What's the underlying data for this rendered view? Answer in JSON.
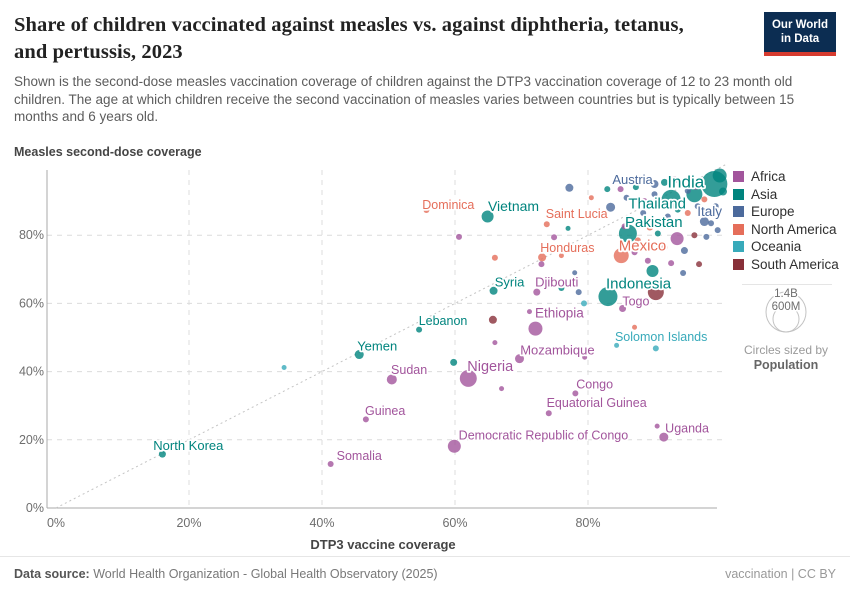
{
  "header": {
    "title": "Share of children vaccinated against measles vs. against diphtheria, tetanus, and pertussis, 2023",
    "subtitle": "Shown is the second-dose measles vaccination coverage of children against the DTP3 vaccination coverage of 12 to 23 month old children. The age at which children receive the second vaccination of measles varies between countries but is typically between 15 months and 6 years old.",
    "logo_line1": "Our World",
    "logo_line2": "in Data"
  },
  "legend": {
    "items": [
      "Africa",
      "Asia",
      "Europe",
      "North America",
      "Oceania",
      "South America"
    ],
    "size": {
      "big_label": "1.4B",
      "small_label": "600M",
      "caption": "Circles sized by",
      "caption_bold": "Population"
    }
  },
  "footer": {
    "source_label": "Data source:",
    "source_text": "World Health Organization - Global Health Observatory (2025)",
    "right_text": "vaccination | CC BY"
  },
  "chart_data": {
    "type": "scatter",
    "title": "Share of children vaccinated against measles vs. against diphtheria, tetanus, and pertussis, 2023",
    "xlabel": "DTP3 vaccine coverage",
    "ylabel": "Measles second-dose coverage",
    "xlim": [
      0,
      100
    ],
    "ylim": [
      0,
      100
    ],
    "x_ticks": [
      0,
      20,
      40,
      60,
      80
    ],
    "y_ticks": [
      0,
      20,
      40,
      60,
      80
    ],
    "grid": true,
    "diagonal_reference_line": true,
    "legend_position": "right",
    "size_encoding": "Population",
    "continent_colors": {
      "Africa": "#a2559c",
      "Asia": "#00847e",
      "Europe": "#4c6a9c",
      "North America": "#e56e5a",
      "Oceania": "#38aaba",
      "South America": "#883039"
    },
    "points": [
      {
        "name": "North Korea",
        "x": 16,
        "y": 15.8,
        "r": 3.5,
        "c": "Asia",
        "label": {
          "x": 19.9,
          "y": 18.3,
          "s": 13
        }
      },
      {
        "name": "Somalia",
        "x": 41.3,
        "y": 12.9,
        "r": 3,
        "c": "Africa",
        "label": {
          "x": 45.6,
          "y": 15.4,
          "s": 12.5
        }
      },
      {
        "name": "Guinea",
        "x": 46.6,
        "y": 26,
        "r": 3,
        "c": "Africa",
        "label": {
          "x": 49.5,
          "y": 28.5,
          "s": 12.5
        }
      },
      {
        "name": "Yemen",
        "x": 45.6,
        "y": 45,
        "r": 4.5,
        "c": "Asia",
        "label": {
          "x": 48.3,
          "y": 47.5,
          "s": 13
        }
      },
      {
        "name": "Sudan",
        "x": 50.5,
        "y": 37.7,
        "r": 5,
        "c": "Africa",
        "label": {
          "x": 53.1,
          "y": 40.6,
          "s": 12.5
        }
      },
      {
        "name": "Lebanon",
        "x": 54.6,
        "y": 52.3,
        "r": 3,
        "c": "Asia",
        "label": {
          "x": 58.2,
          "y": 55,
          "s": 12.5
        }
      },
      {
        "name": "Nigeria",
        "x": 62,
        "y": 38,
        "r": 8.5,
        "c": "Africa",
        "label": {
          "x": 65.3,
          "y": 41.6,
          "s": 14.5
        }
      },
      {
        "name": "Democratic Republic of Congo",
        "x": 59.9,
        "y": 18.1,
        "r": 6.5,
        "c": "Africa",
        "label": {
          "x": 73.3,
          "y": 21.3,
          "s": 12.5
        }
      },
      {
        "name": "Dominica",
        "x": 55.7,
        "y": 87.4,
        "r": 3,
        "c": "North America",
        "label": {
          "x": 59,
          "y": 88.9,
          "s": 12.5
        }
      },
      {
        "name": "Vietnam",
        "x": 64.9,
        "y": 85.5,
        "r": 6,
        "c": "Asia",
        "label": {
          "x": 68.8,
          "y": 88.5,
          "s": 14
        }
      },
      {
        "name": "Saint Lucia",
        "x": 73.8,
        "y": 83.2,
        "r": 3,
        "c": "North America",
        "label": {
          "x": 78.3,
          "y": 86.4,
          "s": 12.5
        }
      },
      {
        "name": "Honduras",
        "x": 73.1,
        "y": 73.5,
        "r": 4,
        "c": "North America",
        "label": {
          "x": 76.9,
          "y": 76.3,
          "s": 12.5
        }
      },
      {
        "name": "Syria",
        "x": 65.8,
        "y": 63.7,
        "r": 4,
        "c": "Asia",
        "label": {
          "x": 68.2,
          "y": 66.3,
          "s": 13
        }
      },
      {
        "name": "Djibouti",
        "x": 72.3,
        "y": 63.3,
        "r": 3.5,
        "c": "Africa",
        "label": {
          "x": 75.3,
          "y": 66.3,
          "s": 13
        }
      },
      {
        "name": "Indonesia",
        "x": 83,
        "y": 62,
        "r": 9.5,
        "c": "Asia",
        "label": {
          "x": 87.6,
          "y": 65.9,
          "s": 15
        }
      },
      {
        "name": "Togo",
        "x": 85.2,
        "y": 58.5,
        "r": 3.5,
        "c": "Africa",
        "label": {
          "x": 87.2,
          "y": 60.7,
          "s": 12.5
        }
      },
      {
        "name": "Ethiopia",
        "x": 72.1,
        "y": 52.6,
        "r": 7,
        "c": "Africa",
        "label": {
          "x": 75.7,
          "y": 57.2,
          "s": 13.5
        }
      },
      {
        "name": "Mozambique",
        "x": 69.7,
        "y": 43.8,
        "r": 4.5,
        "c": "Africa",
        "label": {
          "x": 75.4,
          "y": 46.4,
          "s": 13
        }
      },
      {
        "name": "Solomon Islands",
        "x": 90.2,
        "y": 46.8,
        "r": 3,
        "c": "Oceania",
        "label": {
          "x": 91,
          "y": 50.2,
          "s": 12.5
        }
      },
      {
        "name": "Congo",
        "x": 78.1,
        "y": 33.6,
        "r": 3,
        "c": "Africa",
        "label": {
          "x": 81,
          "y": 36.3,
          "s": 12.5
        }
      },
      {
        "name": "Equatorial Guinea",
        "x": 74.1,
        "y": 27.8,
        "r": 3,
        "c": "Africa",
        "label": {
          "x": 81.3,
          "y": 30.9,
          "s": 12.5
        }
      },
      {
        "name": "Uganda",
        "x": 91.4,
        "y": 20.8,
        "r": 4.5,
        "c": "Africa",
        "label": {
          "x": 94.9,
          "y": 23.4,
          "s": 12.5
        }
      },
      {
        "name": "Austria",
        "x": 90,
        "y": 95,
        "r": 4,
        "c": "Europe",
        "label": {
          "x": 86.7,
          "y": 96.4,
          "s": 13
        }
      },
      {
        "name": "India",
        "x": 99,
        "y": 95,
        "r": 13,
        "c": "Asia",
        "label": {
          "x": 94.7,
          "y": 95.8,
          "s": 17
        }
      },
      {
        "name": "Thailand",
        "x": 92.5,
        "y": 90.5,
        "r": 9.5,
        "c": "Asia",
        "label": {
          "x": 90.4,
          "y": 89.4,
          "s": 15
        }
      },
      {
        "name": "Italy",
        "x": 97.5,
        "y": 84,
        "r": 4.5,
        "c": "Europe",
        "label": {
          "x": 98.3,
          "y": 87,
          "s": 13.5
        }
      },
      {
        "name": "Pakistan",
        "x": 86,
        "y": 80.5,
        "r": 9,
        "c": "Asia",
        "label": {
          "x": 89.9,
          "y": 84,
          "s": 15
        }
      },
      {
        "name": "Mexico",
        "x": 85,
        "y": 74,
        "r": 7.5,
        "c": "North America",
        "label": {
          "x": 88.2,
          "y": 77,
          "s": 15
        }
      },
      {
        "x": 59.8,
        "y": 42.7,
        "r": 3.5,
        "c": "Asia"
      },
      {
        "x": 89.7,
        "y": 69.5,
        "r": 6,
        "c": "Asia"
      },
      {
        "x": 82.9,
        "y": 93.5,
        "r": 3,
        "c": "Asia"
      },
      {
        "x": 87.2,
        "y": 94.1,
        "r": 3,
        "c": "Asia"
      },
      {
        "x": 91.5,
        "y": 95.5,
        "r": 3.5,
        "c": "Asia"
      },
      {
        "x": 96,
        "y": 92,
        "r": 8,
        "c": "Asia"
      },
      {
        "x": 99.8,
        "y": 97.5,
        "r": 7,
        "c": "Asia"
      },
      {
        "x": 97,
        "y": 87.5,
        "r": 3,
        "c": "Asia"
      },
      {
        "x": 93.5,
        "y": 87.5,
        "r": 3,
        "c": "Asia"
      },
      {
        "x": 90.5,
        "y": 80.5,
        "r": 3,
        "c": "Asia"
      },
      {
        "x": 76.5,
        "y": 86.5,
        "r": 2.5,
        "c": "Asia"
      },
      {
        "x": 77,
        "y": 82,
        "r": 2.5,
        "c": "Asia"
      },
      {
        "x": 76,
        "y": 64.5,
        "r": 3,
        "c": "Asia"
      },
      {
        "x": 100.3,
        "y": 92.8,
        "r": 4,
        "c": "Asia"
      },
      {
        "x": 83.4,
        "y": 88.2,
        "r": 4.5,
        "c": "Europe"
      },
      {
        "x": 77.2,
        "y": 93.9,
        "r": 4,
        "c": "Europe"
      },
      {
        "x": 90,
        "y": 92,
        "r": 3,
        "c": "Europe"
      },
      {
        "x": 95,
        "y": 93,
        "r": 3,
        "c": "Europe"
      },
      {
        "x": 96.5,
        "y": 88.5,
        "r": 3,
        "c": "Europe"
      },
      {
        "x": 92,
        "y": 85.5,
        "r": 3,
        "c": "Europe"
      },
      {
        "x": 98.5,
        "y": 83.5,
        "r": 3,
        "c": "Europe"
      },
      {
        "x": 99.5,
        "y": 81.5,
        "r": 3,
        "c": "Europe"
      },
      {
        "x": 94.5,
        "y": 75.5,
        "r": 3.5,
        "c": "Europe"
      },
      {
        "x": 88.3,
        "y": 86.5,
        "r": 3,
        "c": "Europe"
      },
      {
        "x": 78,
        "y": 69,
        "r": 2.5,
        "c": "Europe"
      },
      {
        "x": 78.6,
        "y": 63.3,
        "r": 3,
        "c": "Europe"
      },
      {
        "x": 94.3,
        "y": 68.9,
        "r": 3,
        "c": "Europe"
      },
      {
        "x": 85.8,
        "y": 91,
        "r": 3,
        "c": "Europe"
      },
      {
        "x": 97.8,
        "y": 79.5,
        "r": 3,
        "c": "Europe"
      },
      {
        "x": 99.2,
        "y": 88.5,
        "r": 3,
        "c": "Europe"
      },
      {
        "x": 84.9,
        "y": 93.5,
        "r": 3,
        "c": "Africa"
      },
      {
        "x": 85.5,
        "y": 82.6,
        "r": 3,
        "c": "Africa"
      },
      {
        "x": 88.5,
        "y": 90,
        "r": 3,
        "c": "Africa"
      },
      {
        "x": 93,
        "y": 96.2,
        "r": 3.5,
        "c": "Africa"
      },
      {
        "x": 96.2,
        "y": 94.2,
        "r": 3,
        "c": "Africa"
      },
      {
        "x": 91,
        "y": 88.5,
        "r": 3,
        "c": "Africa"
      },
      {
        "x": 87,
        "y": 75,
        "r": 3,
        "c": "Africa"
      },
      {
        "x": 89,
        "y": 72.5,
        "r": 3,
        "c": "Africa"
      },
      {
        "x": 92.5,
        "y": 71.8,
        "r": 3,
        "c": "Africa"
      },
      {
        "x": 93.4,
        "y": 79,
        "r": 6.5,
        "c": "Africa"
      },
      {
        "x": 74.9,
        "y": 79.4,
        "r": 3,
        "c": "Africa"
      },
      {
        "x": 60.6,
        "y": 79.5,
        "r": 3,
        "c": "Africa"
      },
      {
        "x": 73,
        "y": 71.5,
        "r": 3,
        "c": "Africa"
      },
      {
        "x": 66,
        "y": 48.5,
        "r": 2.5,
        "c": "Africa"
      },
      {
        "x": 90.4,
        "y": 24,
        "r": 2.5,
        "c": "Africa"
      },
      {
        "x": 67,
        "y": 35,
        "r": 2.5,
        "c": "Africa"
      },
      {
        "x": 71.2,
        "y": 57.6,
        "r": 2.5,
        "c": "Africa"
      },
      {
        "x": 79.5,
        "y": 44.2,
        "r": 2.5,
        "c": "Africa"
      },
      {
        "x": 89.3,
        "y": 82.4,
        "r": 3.5,
        "c": "North America"
      },
      {
        "x": 87.5,
        "y": 78.5,
        "r": 3,
        "c": "North America"
      },
      {
        "x": 91.5,
        "y": 76.5,
        "r": 3,
        "c": "North America"
      },
      {
        "x": 95,
        "y": 86.5,
        "r": 3,
        "c": "North America"
      },
      {
        "x": 97.5,
        "y": 90.5,
        "r": 3,
        "c": "North America"
      },
      {
        "x": 86,
        "y": 95.8,
        "r": 3,
        "c": "North America"
      },
      {
        "x": 66,
        "y": 73.4,
        "r": 3,
        "c": "North America"
      },
      {
        "x": 76,
        "y": 74,
        "r": 2.5,
        "c": "North America"
      },
      {
        "x": 87,
        "y": 53,
        "r": 2.5,
        "c": "North America"
      },
      {
        "x": 80.5,
        "y": 91,
        "r": 2.5,
        "c": "North America"
      },
      {
        "x": 34.3,
        "y": 41.2,
        "r": 2.5,
        "c": "Oceania"
      },
      {
        "x": 79.4,
        "y": 60,
        "r": 3,
        "c": "Oceania"
      },
      {
        "x": 84.3,
        "y": 47.7,
        "r": 2.5,
        "c": "Oceania"
      },
      {
        "x": 90.2,
        "y": 63.3,
        "r": 8,
        "c": "South America"
      },
      {
        "x": 65.7,
        "y": 55.2,
        "r": 4,
        "c": "South America"
      },
      {
        "x": 96,
        "y": 80,
        "r": 3,
        "c": "South America"
      },
      {
        "x": 96.7,
        "y": 71.5,
        "r": 3,
        "c": "South America"
      }
    ]
  }
}
